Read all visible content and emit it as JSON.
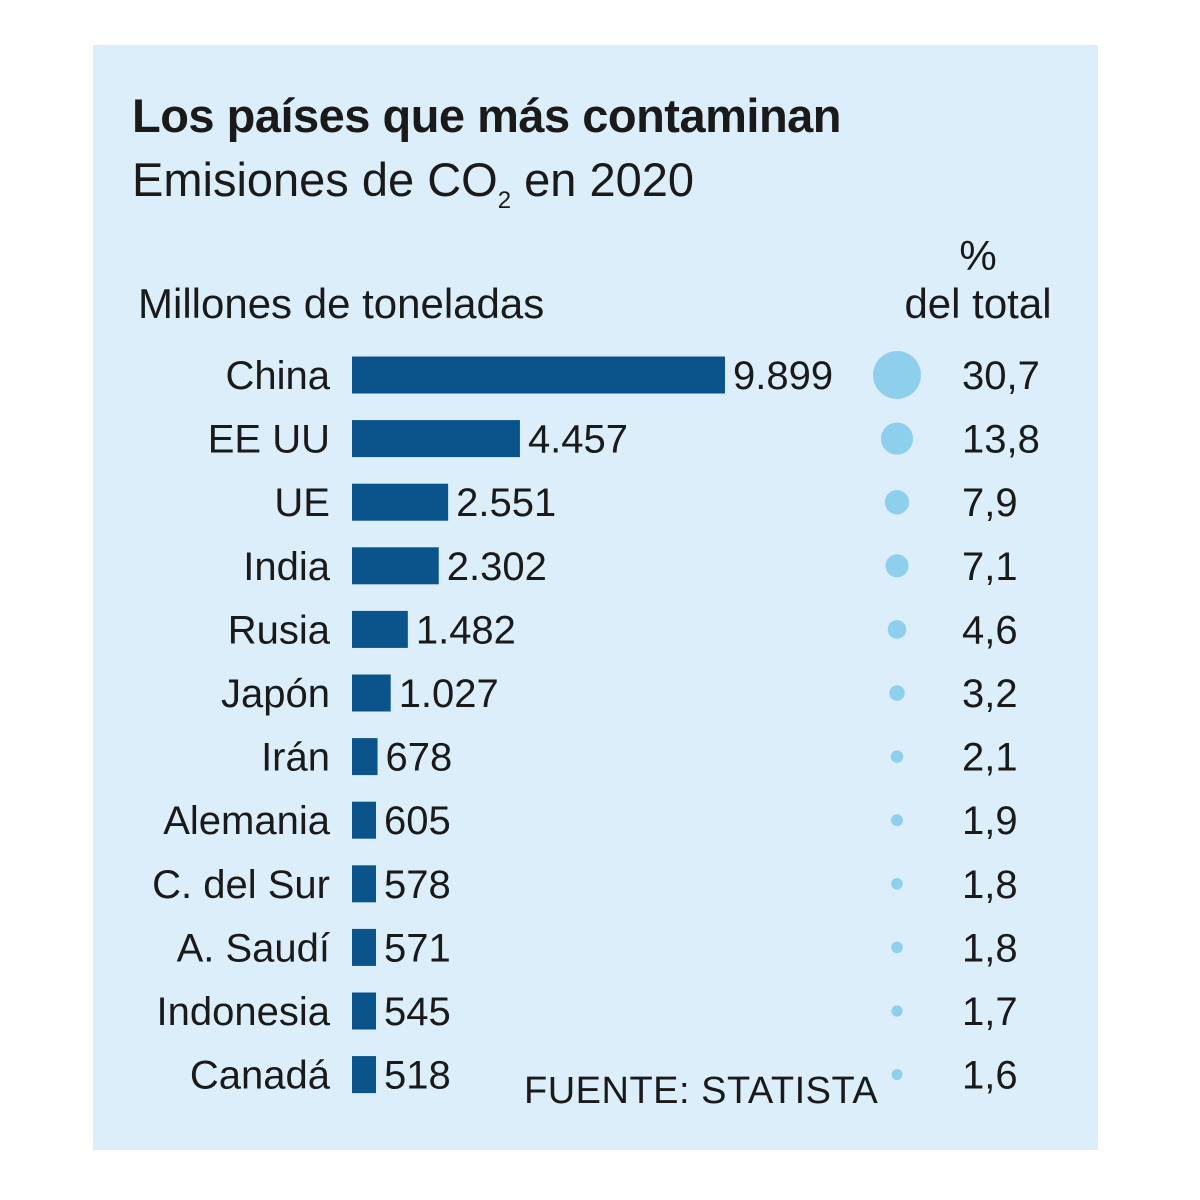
{
  "header": {
    "title": "Los países que más contaminan",
    "subtitle_prefix": "Emisiones de CO",
    "subtitle_sub": "2",
    "subtitle_suffix": " en 2020"
  },
  "labels": {
    "unit": "Millones de toneladas",
    "pct_symbol": "%",
    "pct_total": "del total",
    "source": "FUENTE: STATISTA"
  },
  "colors": {
    "panel_bg": "#dceefa",
    "bar": "#0b538b",
    "bubble": "#8ecfee"
  },
  "chart_data": {
    "type": "bar",
    "orientation": "horizontal",
    "categories": [
      "China",
      "EE UU",
      "UE",
      "India",
      "Rusia",
      "Japón",
      "Irán",
      "Alemania",
      "C. del Sur",
      "A. Saudí",
      "Indonesia",
      "Canadá"
    ],
    "series": [
      {
        "name": "Millones de toneladas",
        "values": [
          9899,
          4457,
          2551,
          2302,
          1482,
          1027,
          678,
          605,
          578,
          571,
          545,
          518
        ],
        "value_labels": [
          "9.899",
          "4.457",
          "2.551",
          "2.302",
          "1.482",
          "1.027",
          "678",
          "605",
          "578",
          "571",
          "545",
          "518"
        ]
      },
      {
        "name": "% del total",
        "values": [
          30.7,
          13.8,
          7.9,
          7.1,
          4.6,
          3.2,
          2.1,
          1.9,
          1.8,
          1.8,
          1.7,
          1.6
        ],
        "value_labels": [
          "30,7",
          "13,8",
          "7,9",
          "7,1",
          "4,6",
          "3,2",
          "2,1",
          "1,9",
          "1,8",
          "1,8",
          "1,7",
          "1,6"
        ]
      }
    ],
    "xlim": [
      0,
      10000
    ]
  }
}
